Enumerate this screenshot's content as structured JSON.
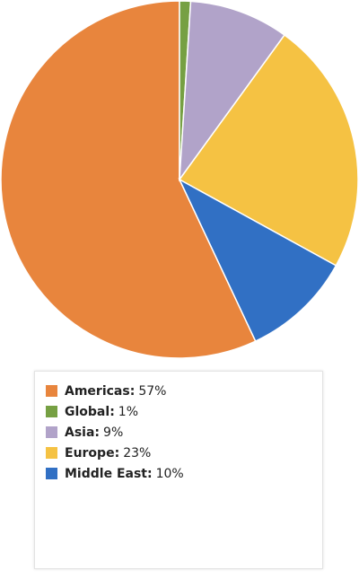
{
  "chart_data": {
    "type": "pie",
    "categories": [
      "Americas",
      "Global",
      "Asia",
      "Europe",
      "Middle East"
    ],
    "values": [
      57,
      1,
      9,
      23,
      10
    ],
    "value_labels": [
      "57%",
      "1%",
      "9%",
      "23%",
      "10%"
    ],
    "label_separator": ":",
    "colors": [
      "#e8853d",
      "#76a043",
      "#b1a3c9",
      "#f5c243",
      "#3170c4"
    ]
  }
}
